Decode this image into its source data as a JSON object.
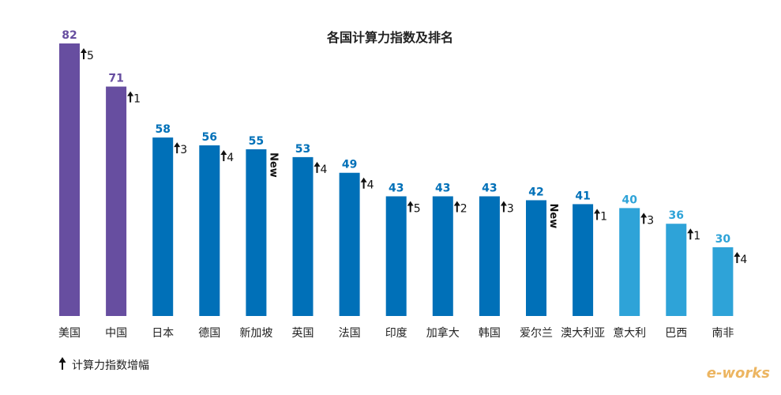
{
  "chart_data": {
    "type": "bar",
    "title": "各国计算力指数及排名",
    "categories": [
      "美国",
      "中国",
      "日本",
      "德国",
      "新加坡",
      "英国",
      "法国",
      "印度",
      "加拿大",
      "韩国",
      "爱尔兰",
      "澳大利亚",
      "意大利",
      "巴西",
      "南非"
    ],
    "values": [
      82,
      71,
      58,
      56,
      55,
      53,
      49,
      43,
      43,
      43,
      42,
      41,
      40,
      36,
      30
    ],
    "colors": [
      "#674ea0",
      "#674ea0",
      "#0070b8",
      "#0070b8",
      "#0070b8",
      "#0070b8",
      "#0070b8",
      "#0070b8",
      "#0070b8",
      "#0070b8",
      "#0070b8",
      "#0070b8",
      "#2ea3d8",
      "#2ea3d8",
      "#2ea3d8"
    ],
    "rank_change": [
      "5",
      "1",
      "3",
      "4",
      "New",
      "4",
      "4",
      "5",
      "2",
      "3",
      "New",
      "1",
      "3",
      "1",
      "4"
    ],
    "legend": "计算力指数增幅",
    "watermark": "e-works"
  }
}
